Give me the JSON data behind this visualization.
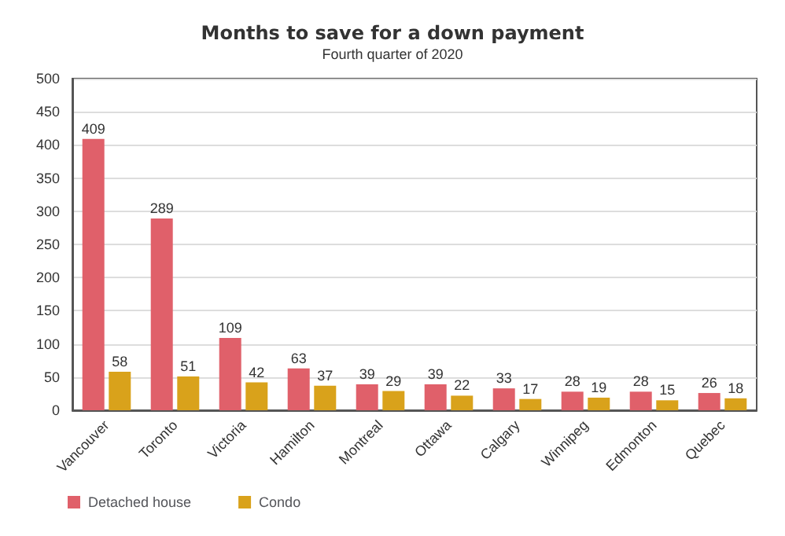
{
  "chart_data": {
    "type": "bar",
    "title": "Months to save for a down payment",
    "subtitle": "Fourth quarter of 2020",
    "categories": [
      "Vancouver",
      "Toronto",
      "Victoria",
      "Hamilton",
      "Montreal",
      "Ottawa",
      "Calgary",
      "Winnipeg",
      "Edmonton",
      "Quebec"
    ],
    "series": [
      {
        "name": "Detached house",
        "color": "#e0606a",
        "values": [
          409,
          289,
          109,
          63,
          39,
          39,
          33,
          28,
          28,
          26
        ]
      },
      {
        "name": "Condo",
        "color": "#d9a21b",
        "values": [
          58,
          51,
          42,
          37,
          29,
          22,
          17,
          19,
          15,
          18
        ]
      }
    ],
    "ylim": [
      0,
      500
    ],
    "yticks": [
      0,
      50,
      100,
      150,
      200,
      250,
      300,
      350,
      400,
      450,
      500
    ],
    "grid": "y",
    "legend": "bottom left",
    "data_labels": true
  }
}
